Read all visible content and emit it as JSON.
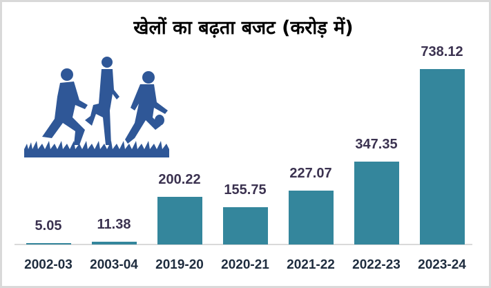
{
  "title": "खेलों का बढ़ता बजट (करोड़ में)",
  "illustration": "running-players-silhouette",
  "colors": {
    "bar": "#34869c",
    "value_label": "#3b3250",
    "axis_label": "#1f2d3f",
    "silhouette": "#2f5797"
  },
  "chart_data": {
    "type": "bar",
    "title": "खेलों का बढ़ता बजट (करोड़ में)",
    "xlabel": "",
    "ylabel": "",
    "categories": [
      "2002-03",
      "2003-04",
      "2019-20",
      "2020-21",
      "2021-22",
      "2022-23",
      "2023-24"
    ],
    "values": [
      5.05,
      11.38,
      200.22,
      155.75,
      227.07,
      347.35,
      738.12
    ],
    "value_labels": [
      "5.05",
      "11.38",
      "200.22",
      "155.75",
      "227.07",
      "347.35",
      "738.12"
    ],
    "grid": false,
    "legend": null,
    "ylim": [
      0,
      738.12
    ]
  }
}
